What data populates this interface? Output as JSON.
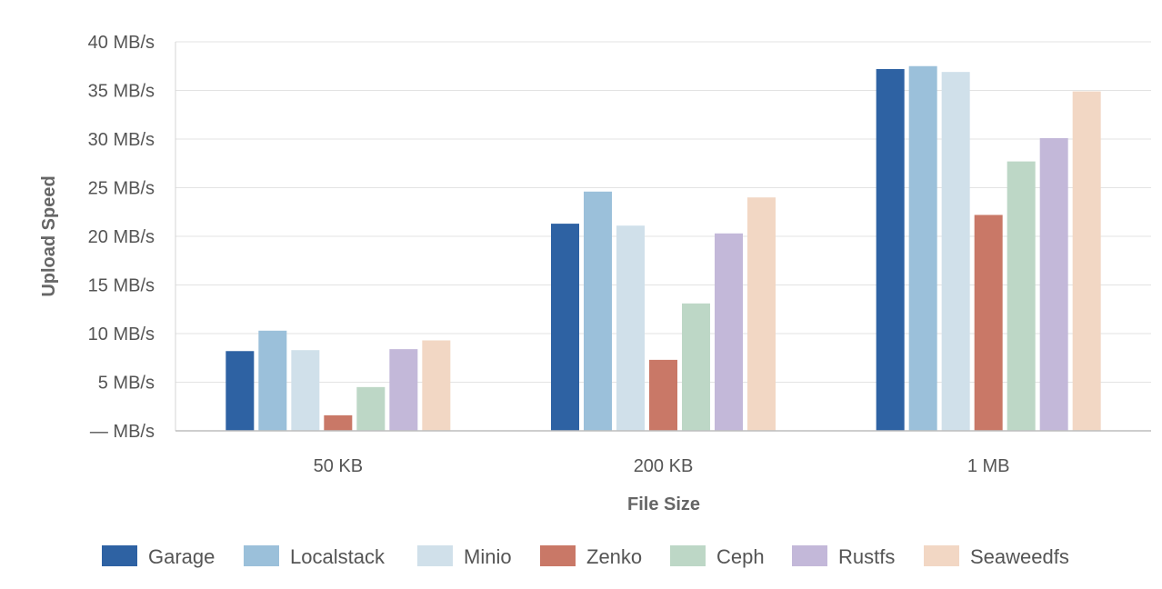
{
  "chart_data": {
    "type": "bar",
    "title": "",
    "xlabel": "File Size",
    "ylabel": "Upload Speed",
    "categories": [
      "50 KB",
      "200 KB",
      "1 MB"
    ],
    "ylim": [
      0,
      40
    ],
    "yticks": [
      0,
      5,
      10,
      15,
      20,
      25,
      30,
      35,
      40
    ],
    "ytick_labels": [
      "— MB/s",
      "5 MB/s",
      "10 MB/s",
      "15 MB/s",
      "20 MB/s",
      "25 MB/s",
      "30 MB/s",
      "35 MB/s",
      "40 MB/s"
    ],
    "grid": true,
    "legend_position": "bottom",
    "series": [
      {
        "name": "Garage",
        "color": "#2e62a3",
        "values": [
          8.2,
          21.3,
          37.2
        ]
      },
      {
        "name": "Localstack",
        "color": "#9bc0da",
        "values": [
          10.3,
          24.6,
          37.5
        ]
      },
      {
        "name": "Minio",
        "color": "#d0e0ea",
        "values": [
          8.3,
          21.1,
          36.9
        ]
      },
      {
        "name": "Zenko",
        "color": "#c97867",
        "values": [
          1.6,
          7.3,
          22.2
        ]
      },
      {
        "name": "Ceph",
        "color": "#bdd7c6",
        "values": [
          4.5,
          13.1,
          27.7
        ]
      },
      {
        "name": "Rustfs",
        "color": "#c3b8d9",
        "values": [
          8.4,
          20.3,
          30.1
        ]
      },
      {
        "name": "Seaweedfs",
        "color": "#f2d7c4",
        "values": [
          9.3,
          24.0,
          34.9
        ]
      }
    ]
  }
}
